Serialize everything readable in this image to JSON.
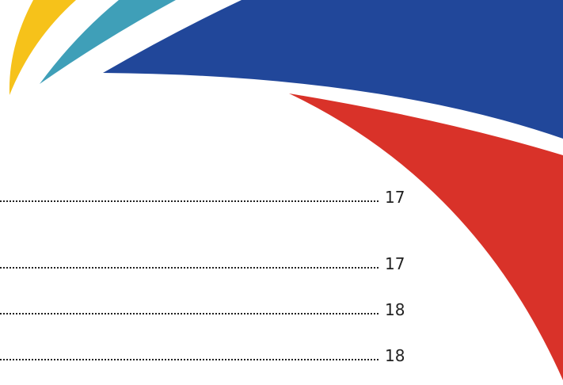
{
  "toc": {
    "entries": [
      {
        "page": 17
      },
      {
        "page": 17
      },
      {
        "page": 18
      },
      {
        "page": 18
      }
    ]
  }
}
